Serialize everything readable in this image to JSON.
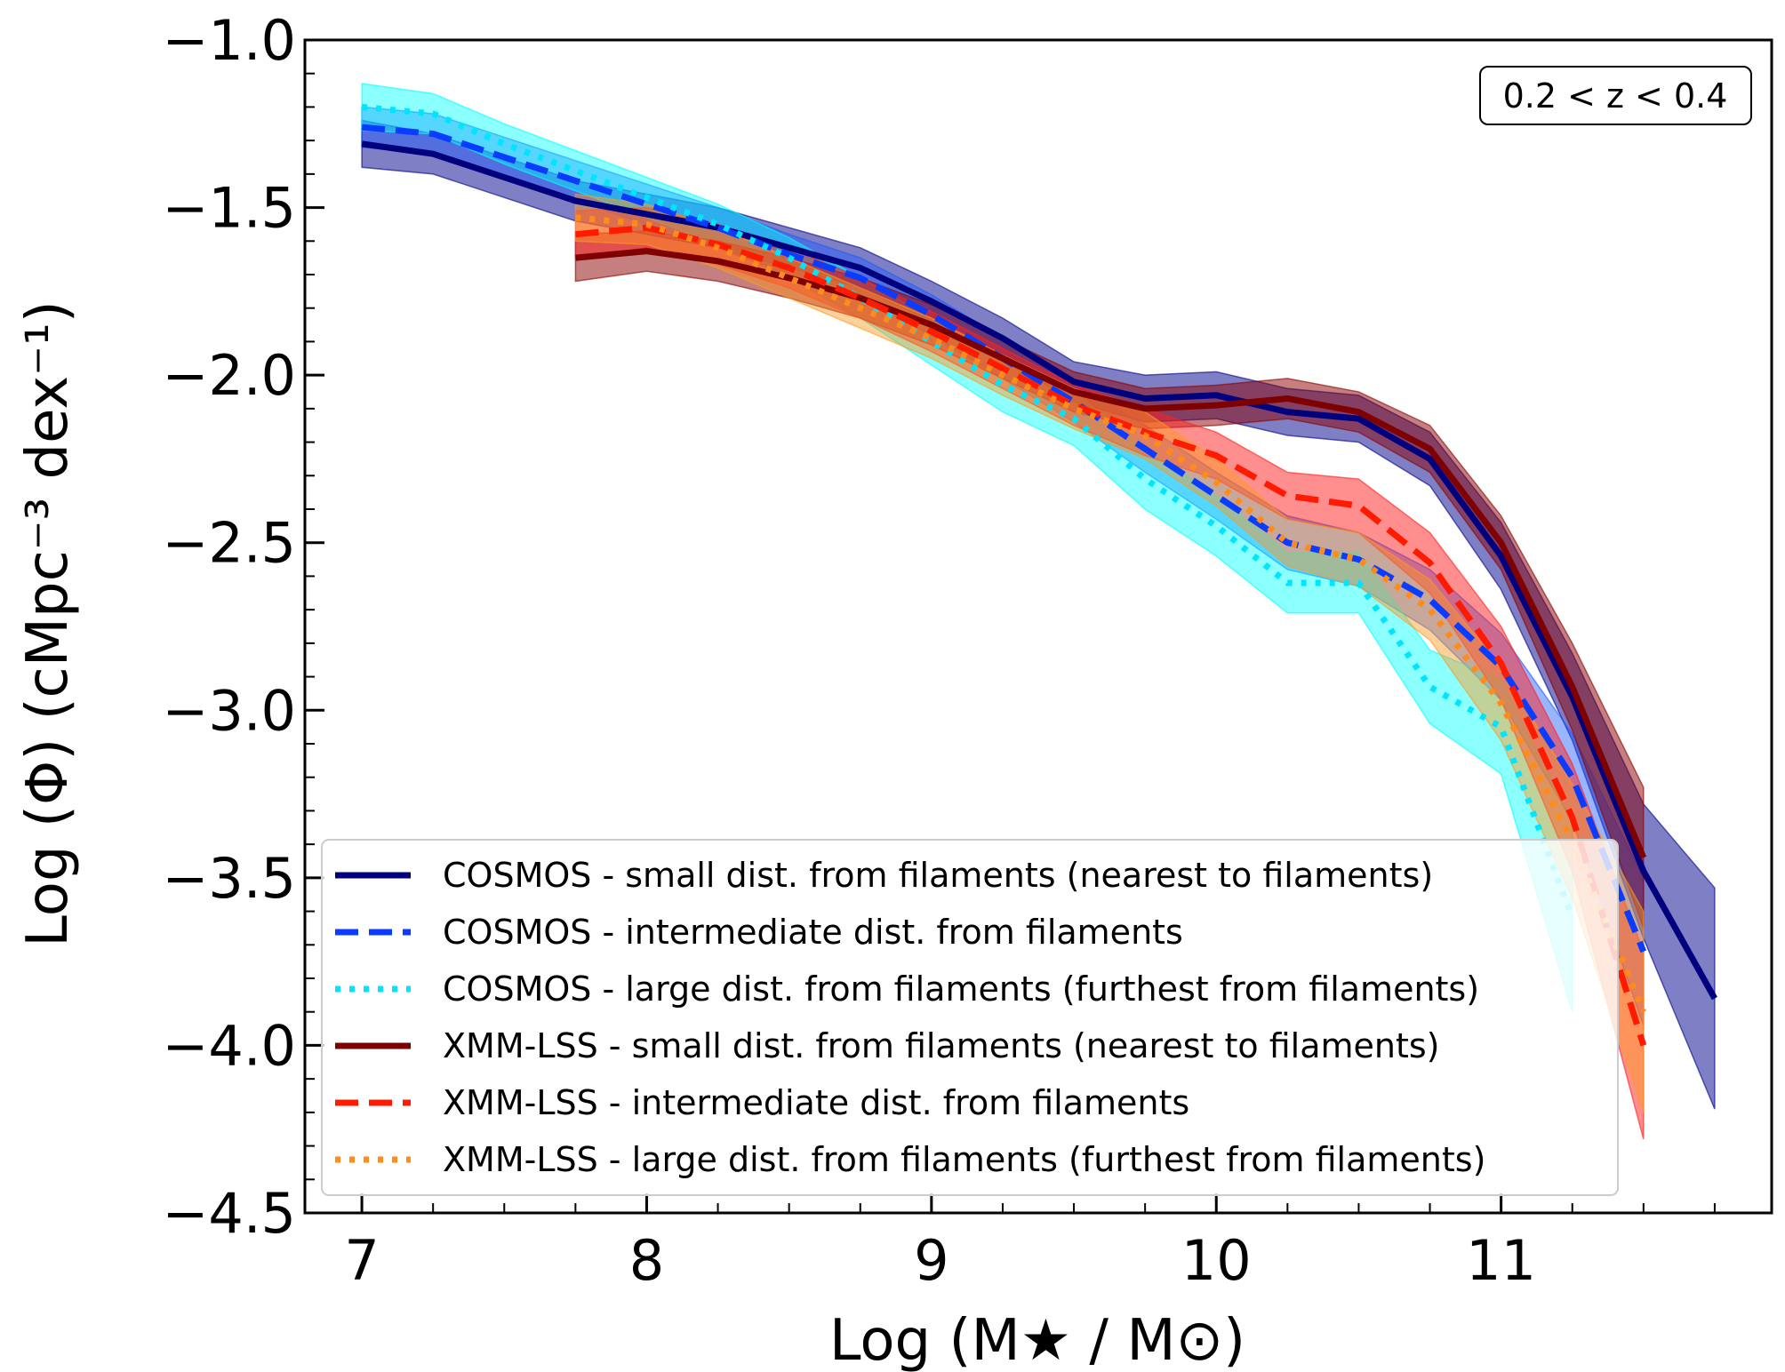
{
  "chart_data": {
    "type": "line",
    "title": "",
    "annotation": "0.2 < z < 0.4",
    "xlabel": "Log (M★ / M⊙)",
    "ylabel": "Log (Φ)  (cMpc⁻³ dex⁻¹)",
    "xlim": [
      6.8,
      11.95
    ],
    "ylim": [
      -4.5,
      -1.0
    ],
    "xticks": [
      7,
      8,
      9,
      10,
      11
    ],
    "xtick_labels": [
      "7",
      "8",
      "9",
      "10",
      "11"
    ],
    "yticks": [
      -1.0,
      -1.5,
      -2.0,
      -2.5,
      -3.0,
      -3.5,
      -4.0,
      -4.5
    ],
    "ytick_labels": [
      "−1.0",
      "−1.5",
      "−2.0",
      "−2.5",
      "−3.0",
      "−3.5",
      "−4.0",
      "−4.5"
    ],
    "legend_position": "lower-right",
    "grid": false,
    "series": [
      {
        "name": "COSMOS - small dist. from filaments (nearest to filaments)",
        "color": "#00007f",
        "dash": "solid",
        "band_color": "#00008b",
        "band_alpha": 0.5,
        "x": [
          7.0,
          7.25,
          7.5,
          7.75,
          8.0,
          8.25,
          8.5,
          8.75,
          9.0,
          9.25,
          9.5,
          9.75,
          10.0,
          10.25,
          10.5,
          10.75,
          11.0,
          11.25,
          11.5,
          11.75
        ],
        "y": [
          -1.31,
          -1.34,
          -1.41,
          -1.48,
          -1.52,
          -1.56,
          -1.62,
          -1.68,
          -1.78,
          -1.89,
          -2.02,
          -2.07,
          -2.06,
          -2.11,
          -2.13,
          -2.25,
          -2.54,
          -2.96,
          -3.48,
          -3.86
        ],
        "err": [
          0.07,
          0.06,
          0.06,
          0.06,
          0.06,
          0.06,
          0.06,
          0.06,
          0.06,
          0.06,
          0.06,
          0.07,
          0.07,
          0.07,
          0.07,
          0.08,
          0.1,
          0.13,
          0.2,
          0.33
        ]
      },
      {
        "name": "COSMOS - intermediate dist. from filaments",
        "color": "#0a3cff",
        "dash": "dashed",
        "band_color": "#1e5aff",
        "band_alpha": 0.45,
        "x": [
          7.0,
          7.25,
          7.5,
          7.75,
          8.0,
          8.25,
          8.5,
          8.75,
          9.0,
          9.25,
          9.5,
          9.75,
          10.0,
          10.25,
          10.5,
          10.75,
          11.0,
          11.25,
          11.5
        ],
        "y": [
          -1.26,
          -1.28,
          -1.35,
          -1.42,
          -1.49,
          -1.56,
          -1.64,
          -1.71,
          -1.82,
          -1.95,
          -2.08,
          -2.22,
          -2.36,
          -2.5,
          -2.55,
          -2.67,
          -2.87,
          -3.2,
          -3.72
        ],
        "err": [
          0.06,
          0.06,
          0.06,
          0.06,
          0.06,
          0.06,
          0.06,
          0.06,
          0.06,
          0.06,
          0.06,
          0.07,
          0.07,
          0.08,
          0.08,
          0.09,
          0.1,
          0.13,
          0.22
        ]
      },
      {
        "name": "COSMOS - large dist. from filaments (furthest from filaments)",
        "color": "#00e5ff",
        "dash": "dotted",
        "band_color": "#00ffff",
        "band_alpha": 0.45,
        "x": [
          7.0,
          7.25,
          7.5,
          7.75,
          8.0,
          8.25,
          8.5,
          8.75,
          9.0,
          9.25,
          9.5,
          9.75,
          10.0,
          10.25,
          10.5,
          10.75,
          11.0,
          11.25
        ],
        "y": [
          -1.2,
          -1.22,
          -1.31,
          -1.39,
          -1.47,
          -1.55,
          -1.65,
          -1.77,
          -1.9,
          -2.03,
          -2.13,
          -2.31,
          -2.45,
          -2.62,
          -2.62,
          -2.93,
          -3.05,
          -3.62
        ],
        "err": [
          0.07,
          0.06,
          0.06,
          0.06,
          0.06,
          0.06,
          0.06,
          0.06,
          0.07,
          0.08,
          0.08,
          0.09,
          0.09,
          0.09,
          0.09,
          0.11,
          0.14,
          0.28
        ]
      },
      {
        "name": "XMM-LSS - small dist. from filaments (nearest to filaments)",
        "color": "#7f0000",
        "dash": "solid",
        "band_color": "#8b0000",
        "band_alpha": 0.5,
        "x": [
          7.75,
          8.0,
          8.25,
          8.5,
          8.75,
          9.0,
          9.25,
          9.5,
          9.75,
          10.0,
          10.25,
          10.5,
          10.75,
          11.0,
          11.25,
          11.5
        ],
        "y": [
          -1.65,
          -1.63,
          -1.66,
          -1.71,
          -1.77,
          -1.85,
          -1.95,
          -2.05,
          -2.1,
          -2.09,
          -2.07,
          -2.11,
          -2.22,
          -2.5,
          -2.93,
          -3.44
        ],
        "err": [
          0.07,
          0.06,
          0.06,
          0.06,
          0.06,
          0.06,
          0.06,
          0.06,
          0.06,
          0.06,
          0.06,
          0.06,
          0.07,
          0.08,
          0.13,
          0.21
        ]
      },
      {
        "name": "XMM-LSS - intermediate dist. from filaments",
        "color": "#ff1a00",
        "dash": "dashed",
        "band_color": "#ff2020",
        "band_alpha": 0.5,
        "x": [
          7.75,
          8.0,
          8.25,
          8.5,
          8.75,
          9.0,
          9.25,
          9.5,
          9.75,
          10.0,
          10.25,
          10.5,
          10.75,
          11.0,
          11.25,
          11.5
        ],
        "y": [
          -1.58,
          -1.56,
          -1.61,
          -1.68,
          -1.77,
          -1.87,
          -1.98,
          -2.09,
          -2.17,
          -2.24,
          -2.36,
          -2.39,
          -2.56,
          -2.86,
          -3.32,
          -4.0
        ],
        "err": [
          0.07,
          0.06,
          0.06,
          0.06,
          0.06,
          0.06,
          0.06,
          0.06,
          0.07,
          0.07,
          0.07,
          0.08,
          0.09,
          0.11,
          0.16,
          0.28
        ]
      },
      {
        "name": "XMM-LSS - large dist. from filaments (furthest from filaments)",
        "color": "#ff8c1a",
        "dash": "dotted",
        "band_color": "#ff9a1f",
        "band_alpha": 0.45,
        "x": [
          7.75,
          8.0,
          8.25,
          8.5,
          8.75,
          9.0,
          9.25,
          9.5,
          9.75,
          10.0,
          10.25,
          10.5,
          10.75,
          11.0,
          11.25,
          11.5
        ],
        "y": [
          -1.53,
          -1.55,
          -1.62,
          -1.71,
          -1.8,
          -1.89,
          -2.0,
          -2.1,
          -2.18,
          -2.32,
          -2.5,
          -2.55,
          -2.7,
          -2.98,
          -3.39,
          -3.9
        ],
        "err": [
          0.07,
          0.06,
          0.06,
          0.06,
          0.06,
          0.06,
          0.06,
          0.06,
          0.07,
          0.07,
          0.07,
          0.08,
          0.09,
          0.11,
          0.17,
          0.3
        ]
      }
    ]
  }
}
